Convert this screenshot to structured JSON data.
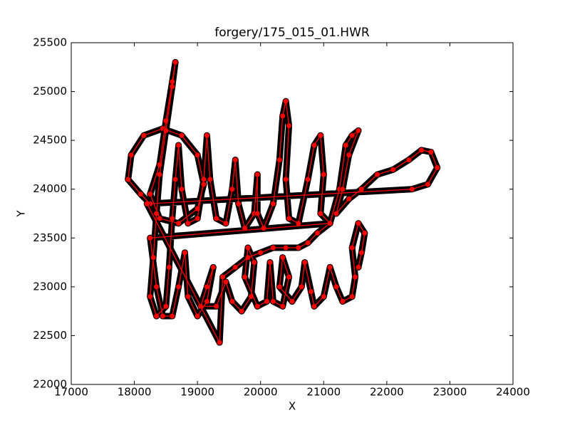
{
  "chart_data": {
    "type": "line",
    "title": "forgery/175_015_01.HWR",
    "xlabel": "X",
    "ylabel": "Y",
    "color": "#ff0000",
    "marker_edge": "#000000",
    "xlim": [
      17000,
      24000
    ],
    "xticks": [
      17000,
      18000,
      19000,
      20000,
      21000,
      22000,
      23000,
      24000
    ],
    "ylim": [
      22000,
      25500
    ],
    "yticks": [
      22000,
      22500,
      23000,
      23500,
      24000,
      24500,
      25000,
      25500
    ],
    "x": [
      18250,
      18100,
      17900,
      17950,
      18150,
      18450,
      18750,
      19000,
      19100,
      19000,
      18700,
      18400,
      18250,
      18400,
      18500,
      18600,
      18650,
      18600,
      18500,
      18400,
      18350,
      18300,
      18250,
      18350,
      18500,
      18550,
      18600,
      18650,
      18700,
      18750,
      18850,
      19000,
      19100,
      19150,
      19200,
      19300,
      19450,
      19550,
      19600,
      19650,
      19750,
      19900,
      19950,
      19950,
      20050,
      20200,
      20300,
      20350,
      20400,
      20450,
      20400,
      20450,
      20600,
      20750,
      20850,
      20950,
      21000,
      20950,
      21100,
      21250,
      21350,
      21450,
      21550,
      21400,
      21300,
      21200,
      21400,
      21600,
      21850,
      22100,
      22350,
      22550,
      22700,
      22800,
      22650,
      22400,
      18200,
      19350,
      19400,
      19600,
      19800,
      20000,
      20200,
      20400,
      20600,
      20750,
      20900,
      21100,
      18250,
      18350,
      18450,
      18600,
      18700,
      18800,
      18850,
      19000,
      19150,
      19250,
      19150,
      19050,
      19300,
      19450,
      19550,
      19700,
      19850,
      19900,
      19800,
      19750,
      19950,
      20100,
      20150,
      20200,
      20350,
      20450,
      20350,
      20300,
      20500,
      20650,
      20700,
      20800,
      20850,
      21000,
      21100,
      21200,
      21300,
      21450,
      21500,
      21450,
      21550,
      21650,
      21600,
      21550
    ],
    "y": [
      23850,
      23950,
      24100,
      24350,
      24550,
      24620,
      24550,
      24350,
      24050,
      23800,
      23650,
      23700,
      23950,
      24250,
      24700,
      25100,
      25300,
      25050,
      24600,
      24150,
      23750,
      23300,
      22900,
      22700,
      22800,
      23200,
      23700,
      24100,
      24450,
      24000,
      23650,
      23700,
      24100,
      24550,
      24100,
      23700,
      23650,
      24000,
      24300,
      23850,
      23600,
      23750,
      24150,
      23750,
      23600,
      23850,
      24300,
      24750,
      24900,
      24650,
      24100,
      23700,
      23650,
      24100,
      24450,
      24550,
      24150,
      23750,
      23650,
      24000,
      24450,
      24550,
      24600,
      24350,
      24000,
      23750,
      23900,
      24000,
      24150,
      24200,
      24300,
      24400,
      24380,
      24220,
      24050,
      24000,
      23850,
      22430,
      23100,
      23200,
      23300,
      23350,
      23400,
      23400,
      23400,
      23450,
      23550,
      23650,
      23500,
      23000,
      22700,
      22700,
      23000,
      23350,
      22900,
      22700,
      22850,
      23200,
      23000,
      22800,
      22800,
      23050,
      22850,
      22750,
      22900,
      23250,
      23400,
      23100,
      22800,
      22850,
      23250,
      22850,
      22800,
      23100,
      23300,
      23000,
      22850,
      23000,
      23250,
      22950,
      22800,
      22900,
      23200,
      23000,
      22850,
      22900,
      23100,
      23400,
      23650,
      23550,
      23350,
      23200
    ]
  }
}
